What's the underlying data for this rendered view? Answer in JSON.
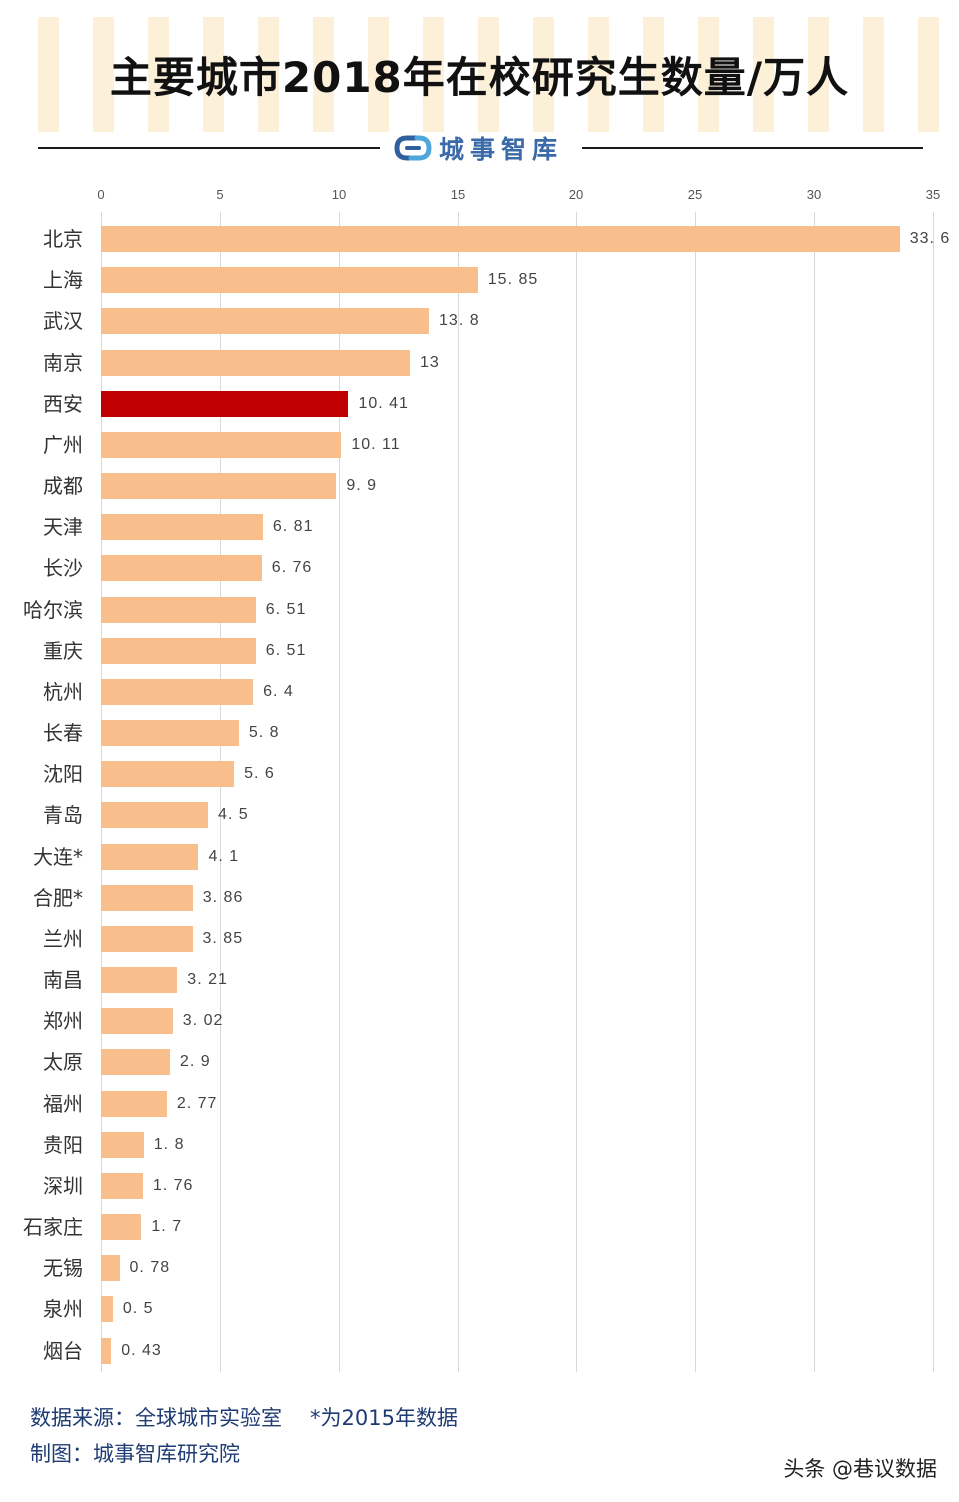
{
  "header": {
    "title": "主要城市2018年在校研究生数量/万人",
    "brand": "城事智库",
    "stripe_color": "#FDF0D8"
  },
  "footer": {
    "source_label": "数据来源：全球城市实验室",
    "note": "*为2015年数据",
    "credit": "制图：城事智库研究院",
    "watermark": "头条 @巷议数据"
  },
  "chart_data": {
    "type": "bar",
    "orientation": "horizontal",
    "title": "主要城市2018年在校研究生数量/万人",
    "xlabel": "",
    "ylabel": "",
    "xlim": [
      0,
      35
    ],
    "x_ticks": [
      "0",
      "5",
      "10",
      "15",
      "20",
      "25",
      "30",
      "35"
    ],
    "x_axis_position": "top",
    "grid": true,
    "legend": null,
    "bar_color": "#F8BE8C",
    "highlight_color": "#C00000",
    "highlight_category": "西安",
    "categories": [
      "北京",
      "上海",
      "武汉",
      "南京",
      "西安",
      "广州",
      "成都",
      "天津",
      "长沙",
      "哈尔滨",
      "重庆",
      "杭州",
      "长春",
      "沈阳",
      "青岛",
      "大连*",
      "合肥*",
      "兰州",
      "南昌",
      "郑州",
      "太原",
      "福州",
      "贵阳",
      "深圳",
      "石家庄",
      "无锡",
      "泉州",
      "烟台"
    ],
    "values": [
      33.6,
      15.85,
      13.8,
      13,
      10.41,
      10.11,
      9.9,
      6.81,
      6.76,
      6.51,
      6.51,
      6.4,
      5.8,
      5.6,
      4.5,
      4.1,
      3.86,
      3.85,
      3.21,
      3.02,
      2.9,
      2.77,
      1.8,
      1.76,
      1.7,
      0.78,
      0.5,
      0.43
    ],
    "value_labels": [
      "33. 6",
      "15. 85",
      "13. 8",
      "13",
      "10. 41",
      "10. 11",
      "9. 9",
      "6. 81",
      "6. 76",
      "6. 51",
      "6. 51",
      "6. 4",
      "5. 8",
      "5. 6",
      "4. 5",
      "4. 1",
      "3. 86",
      "3. 85",
      "3. 21",
      "3. 02",
      "2. 9",
      "2. 77",
      "1. 8",
      "1. 76",
      "1. 7",
      "0. 78",
      "0. 5",
      "0. 43"
    ],
    "annotations": [
      "*为2015年数据"
    ]
  }
}
